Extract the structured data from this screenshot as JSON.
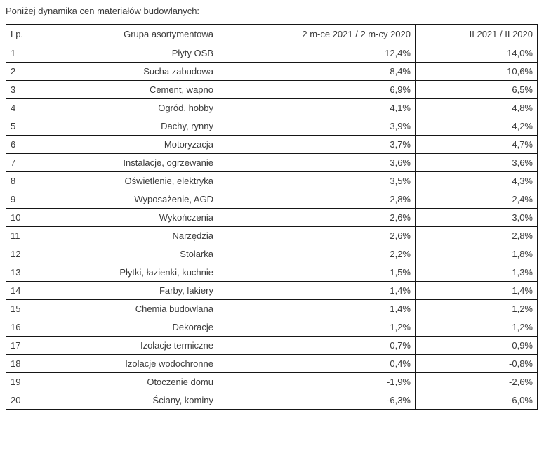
{
  "page": {
    "title": "Poniżej dynamika cen materiałów budowlanych:"
  },
  "colors": {
    "text": "#3a3a3a",
    "border": "#161616",
    "background": "#ffffff"
  },
  "chart_data": {
    "type": "table",
    "title": "Poniżej dynamika cen materiałów budowlanych:",
    "columns": [
      "Lp.",
      "Grupa asortymentowa",
      "2 m-ce 2021 / 2 m-cy 2020",
      "II 2021 / II 2020"
    ],
    "rows": [
      [
        "1",
        "Płyty OSB",
        "12,4%",
        "14,0%"
      ],
      [
        "2",
        "Sucha zabudowa",
        "8,4%",
        "10,6%"
      ],
      [
        "3",
        "Cement, wapno",
        "6,9%",
        "6,5%"
      ],
      [
        "4",
        "Ogród, hobby",
        "4,1%",
        "4,8%"
      ],
      [
        "5",
        "Dachy, rynny",
        "3,9%",
        "4,2%"
      ],
      [
        "6",
        "Motoryzacja",
        "3,7%",
        "4,7%"
      ],
      [
        "7",
        "Instalacje, ogrzewanie",
        "3,6%",
        "3,6%"
      ],
      [
        "8",
        "Oświetlenie, elektryka",
        "3,5%",
        "4,3%"
      ],
      [
        "9",
        "Wyposażenie, AGD",
        "2,8%",
        "2,4%"
      ],
      [
        "10",
        "Wykończenia",
        "2,6%",
        "3,0%"
      ],
      [
        "11",
        "Narzędzia",
        "2,6%",
        "2,8%"
      ],
      [
        "12",
        "Stolarka",
        "2,2%",
        "1,8%"
      ],
      [
        "13",
        "Płytki, łazienki, kuchnie",
        "1,5%",
        "1,3%"
      ],
      [
        "14",
        "Farby, lakiery",
        "1,4%",
        "1,4%"
      ],
      [
        "15",
        "Chemia budowlana",
        "1,4%",
        "1,2%"
      ],
      [
        "16",
        "Dekoracje",
        "1,2%",
        "1,2%"
      ],
      [
        "17",
        "Izolacje termiczne",
        "0,7%",
        "0,9%"
      ],
      [
        "18",
        "Izolacje wodochronne",
        "0,4%",
        "-0,8%"
      ],
      [
        "19",
        "Otoczenie domu",
        "-1,9%",
        "-2,6%"
      ],
      [
        "20",
        "Ściany, kominy",
        "-6,3%",
        "-6,0%"
      ]
    ]
  }
}
